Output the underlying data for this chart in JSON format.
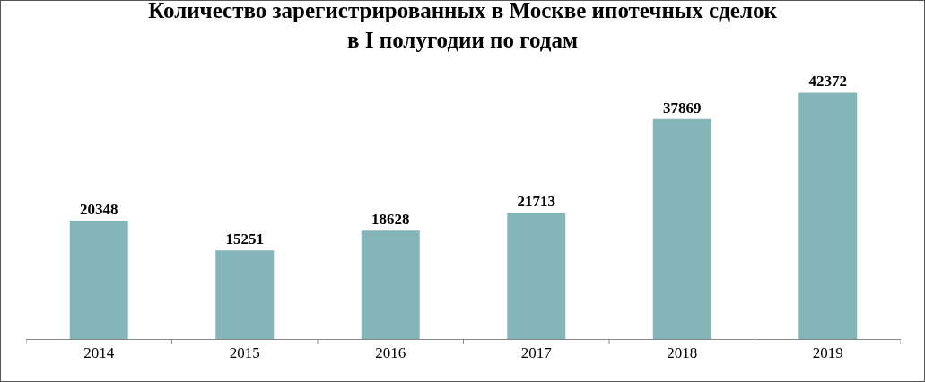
{
  "chart_data": {
    "type": "bar",
    "title": "Количество зарегистрированных в Москве ипотечных сделок\nв I полугодии по годам",
    "categories": [
      "2014",
      "2015",
      "2016",
      "2017",
      "2018",
      "2019"
    ],
    "values": [
      20348,
      15251,
      18628,
      21713,
      37869,
      42372
    ],
    "color": "#84b5b8",
    "data_labels": true,
    "tick_labels": "x"
  }
}
